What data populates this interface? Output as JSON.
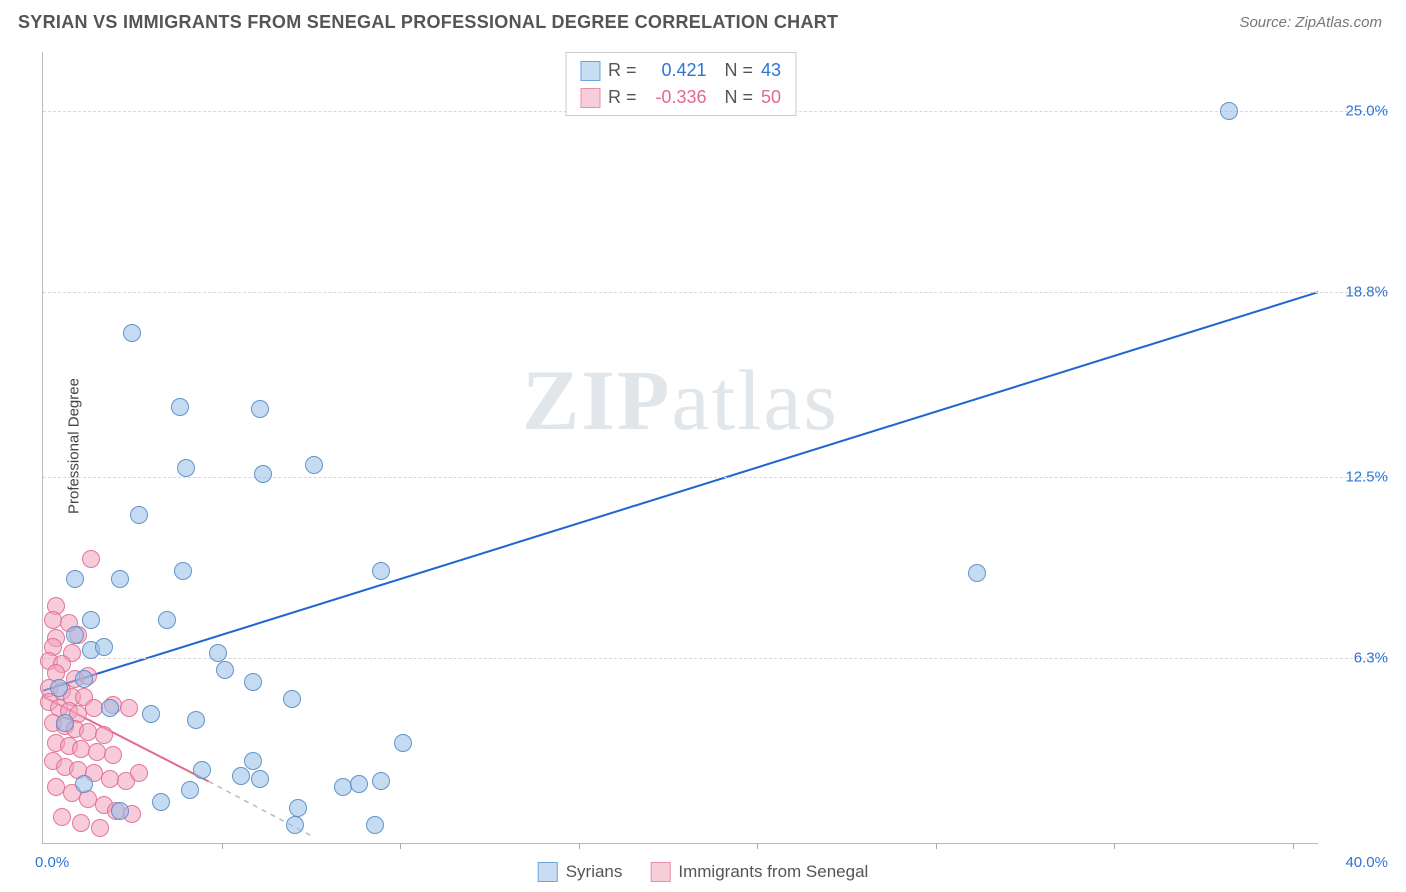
{
  "header": {
    "title": "SYRIAN VS IMMIGRANTS FROM SENEGAL PROFESSIONAL DEGREE CORRELATION CHART",
    "source": "Source: ZipAtlas.com"
  },
  "ylabel": "Professional Degree",
  "watermark": {
    "bold": "ZIP",
    "rest": "atlas"
  },
  "xlim": [
    0,
    40
  ],
  "ylim": [
    0,
    27
  ],
  "x_axis": {
    "min_label": "0.0%",
    "max_label": "40.0%",
    "tick_positions_pct": [
      14,
      28,
      42,
      56,
      70,
      84,
      98
    ]
  },
  "y_gridlines": [
    {
      "value": 6.3,
      "label": "6.3%"
    },
    {
      "value": 12.5,
      "label": "12.5%"
    },
    {
      "value": 18.8,
      "label": "18.8%"
    },
    {
      "value": 25.0,
      "label": "25.0%"
    }
  ],
  "top_legend": [
    {
      "swatch_fill": "#c9ddf2",
      "swatch_border": "#6ea3de",
      "r": "0.421",
      "n": "43",
      "value_color": "#2e74d6"
    },
    {
      "swatch_fill": "#f6cdd8",
      "swatch_border": "#e78fa8",
      "r": "-0.336",
      "n": "50",
      "value_color": "#e46a8a"
    }
  ],
  "bottom_legend": [
    {
      "swatch_fill": "#c9ddf2",
      "swatch_border": "#6ea3de",
      "label": "Syrians"
    },
    {
      "swatch_fill": "#f6cdd8",
      "swatch_border": "#e78fa8",
      "label": "Immigrants from Senegal"
    }
  ],
  "series": {
    "syrians": {
      "point_fill": "rgba(150,190,230,0.55)",
      "point_stroke": "rgba(90,140,200,0.9)",
      "point_radius": 9,
      "trend_color": "#1e66d0",
      "trend_width": 2,
      "trend": {
        "x1": 0,
        "y1": 5.2,
        "x2": 40,
        "y2": 18.8
      },
      "points": [
        [
          37.2,
          25.0
        ],
        [
          2.8,
          17.4
        ],
        [
          4.3,
          14.9
        ],
        [
          6.8,
          14.8
        ],
        [
          4.5,
          12.8
        ],
        [
          6.9,
          12.6
        ],
        [
          8.5,
          12.9
        ],
        [
          3.0,
          11.2
        ],
        [
          1.0,
          9.0
        ],
        [
          2.4,
          9.0
        ],
        [
          4.4,
          9.3
        ],
        [
          10.6,
          9.3
        ],
        [
          29.3,
          9.2
        ],
        [
          1.5,
          7.6
        ],
        [
          3.9,
          7.6
        ],
        [
          1.0,
          7.1
        ],
        [
          1.5,
          6.6
        ],
        [
          1.9,
          6.7
        ],
        [
          5.5,
          6.5
        ],
        [
          5.7,
          5.9
        ],
        [
          6.6,
          5.5
        ],
        [
          7.8,
          4.9
        ],
        [
          1.3,
          5.6
        ],
        [
          0.5,
          5.3
        ],
        [
          0.7,
          4.1
        ],
        [
          2.1,
          4.6
        ],
        [
          3.4,
          4.4
        ],
        [
          4.8,
          4.2
        ],
        [
          5.0,
          2.5
        ],
        [
          6.2,
          2.3
        ],
        [
          6.6,
          2.8
        ],
        [
          6.8,
          2.2
        ],
        [
          8.0,
          1.2
        ],
        [
          9.4,
          1.9
        ],
        [
          9.9,
          2.0
        ],
        [
          10.6,
          2.1
        ],
        [
          11.3,
          3.4
        ],
        [
          7.9,
          0.6
        ],
        [
          10.4,
          0.6
        ],
        [
          3.7,
          1.4
        ],
        [
          4.6,
          1.8
        ],
        [
          2.4,
          1.1
        ],
        [
          1.3,
          2.0
        ]
      ]
    },
    "senegal": {
      "point_fill": "rgba(240,160,185,0.55)",
      "point_stroke": "rgba(225,110,145,0.9)",
      "point_radius": 9,
      "trend_color": "#e46a8a",
      "trend_width": 2,
      "trend": {
        "x1": 0,
        "y1": 5.0,
        "x2": 5.2,
        "y2": 2.1
      },
      "trend_dash": {
        "x1": 5.2,
        "y1": 2.1,
        "x2": 8.5,
        "y2": 0.2
      },
      "points": [
        [
          1.5,
          9.7
        ],
        [
          0.4,
          8.1
        ],
        [
          0.3,
          7.6
        ],
        [
          0.8,
          7.5
        ],
        [
          0.4,
          7.0
        ],
        [
          1.1,
          7.1
        ],
        [
          0.3,
          6.7
        ],
        [
          0.9,
          6.5
        ],
        [
          0.2,
          6.2
        ],
        [
          0.6,
          6.1
        ],
        [
          0.4,
          5.8
        ],
        [
          1.0,
          5.6
        ],
        [
          1.4,
          5.7
        ],
        [
          0.2,
          5.3
        ],
        [
          0.6,
          5.2
        ],
        [
          0.9,
          5.0
        ],
        [
          1.3,
          5.0
        ],
        [
          0.2,
          4.8
        ],
        [
          0.5,
          4.6
        ],
        [
          0.8,
          4.5
        ],
        [
          1.1,
          4.4
        ],
        [
          1.6,
          4.6
        ],
        [
          2.2,
          4.7
        ],
        [
          2.7,
          4.6
        ],
        [
          0.3,
          4.1
        ],
        [
          0.7,
          4.0
        ],
        [
          1.0,
          3.9
        ],
        [
          1.4,
          3.8
        ],
        [
          1.9,
          3.7
        ],
        [
          0.4,
          3.4
        ],
        [
          0.8,
          3.3
        ],
        [
          1.2,
          3.2
        ],
        [
          1.7,
          3.1
        ],
        [
          2.2,
          3.0
        ],
        [
          0.3,
          2.8
        ],
        [
          0.7,
          2.6
        ],
        [
          1.1,
          2.5
        ],
        [
          1.6,
          2.4
        ],
        [
          2.1,
          2.2
        ],
        [
          2.6,
          2.1
        ],
        [
          3.0,
          2.4
        ],
        [
          0.4,
          1.9
        ],
        [
          0.9,
          1.7
        ],
        [
          1.4,
          1.5
        ],
        [
          1.9,
          1.3
        ],
        [
          2.3,
          1.1
        ],
        [
          2.8,
          1.0
        ],
        [
          0.6,
          0.9
        ],
        [
          1.2,
          0.7
        ],
        [
          1.8,
          0.5
        ]
      ]
    }
  },
  "axis_label_color": "#2e74d6"
}
